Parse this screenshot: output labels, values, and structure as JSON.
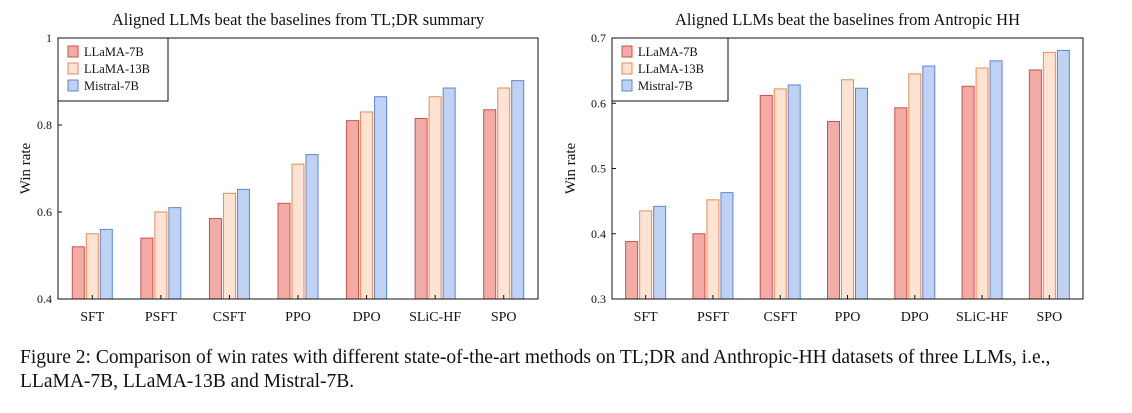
{
  "chart_data": [
    {
      "type": "bar",
      "title": "Aligned LLMs beat the baselines from TL;DR summary",
      "xlabel": "",
      "ylabel": "Win rate",
      "ylim": [
        0.4,
        1.0
      ],
      "yticks": [
        0.4,
        0.6,
        0.8,
        1.0
      ],
      "ytick_labels": [
        "0.4",
        "0.6",
        "0.8",
        "1"
      ],
      "grid": false,
      "legend_position": "top-left",
      "categories": [
        "SFT",
        "PSFT",
        "CSFT",
        "PPO",
        "DPO",
        "SLiC-HF",
        "SPO"
      ],
      "series": [
        {
          "name": "LLaMA-7B",
          "values": [
            0.52,
            0.54,
            0.585,
            0.62,
            0.81,
            0.815,
            0.835
          ]
        },
        {
          "name": "LLaMA-13B",
          "values": [
            0.55,
            0.6,
            0.643,
            0.71,
            0.83,
            0.865,
            0.885
          ]
        },
        {
          "name": "Mistral-7B",
          "values": [
            0.56,
            0.61,
            0.652,
            0.732,
            0.865,
            0.885,
            0.902
          ]
        }
      ]
    },
    {
      "type": "bar",
      "title": "Aligned LLMs beat the baselines from Antropic HH",
      "xlabel": "",
      "ylabel": "Win rate",
      "ylim": [
        0.3,
        0.7
      ],
      "yticks": [
        0.3,
        0.4,
        0.5,
        0.6,
        0.7
      ],
      "ytick_labels": [
        "0.3",
        "0.4",
        "0.5",
        "0.6",
        "0.7"
      ],
      "grid": false,
      "legend_position": "top-left",
      "categories": [
        "SFT",
        "PSFT",
        "CSFT",
        "PPO",
        "DPO",
        "SLiC-HF",
        "SPO"
      ],
      "series": [
        {
          "name": "LLaMA-7B",
          "values": [
            0.388,
            0.4,
            0.612,
            0.572,
            0.593,
            0.626,
            0.651
          ]
        },
        {
          "name": "LLaMA-13B",
          "values": [
            0.435,
            0.452,
            0.622,
            0.636,
            0.645,
            0.654,
            0.678
          ]
        },
        {
          "name": "Mistral-7B",
          "values": [
            0.442,
            0.463,
            0.628,
            0.623,
            0.657,
            0.665,
            0.681
          ]
        }
      ]
    }
  ],
  "series_colors": [
    {
      "fill": "#f3aca5",
      "stroke": "#cd4f49"
    },
    {
      "fill": "#fde3d3",
      "stroke": "#e68d55"
    },
    {
      "fill": "#bfd2f4",
      "stroke": "#5b86d8"
    }
  ],
  "caption": "Figure 2: Comparison of win rates with different state-of-the-art methods on TL;DR and Anthropic-HH datasets of three LLMs, i.e., LLaMA-7B, LLaMA-13B and Mistral-7B."
}
